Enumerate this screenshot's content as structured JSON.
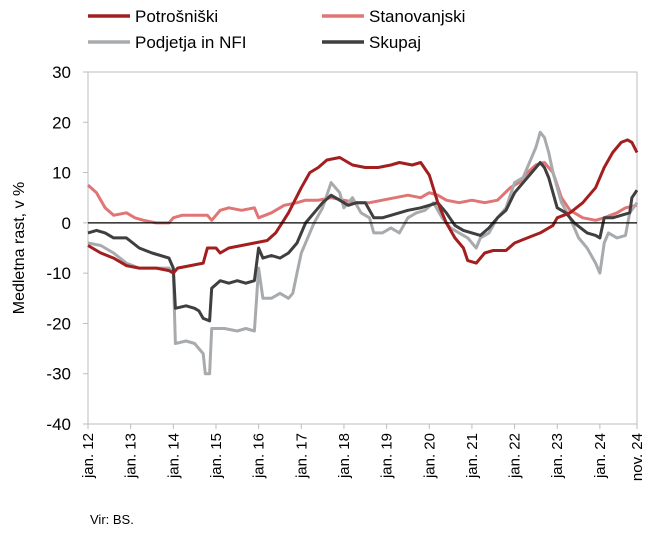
{
  "chart_data": {
    "type": "line",
    "ylabel": "Medletna rast, v %",
    "ylim": [
      -40,
      30
    ],
    "yticks": [
      "30",
      "20",
      "10",
      "0",
      "-10",
      "-20",
      "-30",
      "-40"
    ],
    "xticks": [
      "jan. 12",
      "jan. 13",
      "jan. 14",
      "jan. 15",
      "jan. 16",
      "jan. 17",
      "jan. 18",
      "jan. 19",
      "jan. 20",
      "jan. 21",
      "jan. 22",
      "jan. 23",
      "jan. 24",
      "nov. 24"
    ],
    "source": "Vir: BS.",
    "legend_position": "top",
    "series": [
      {
        "name": "Potrošniški",
        "color": "#A31F1F",
        "points": [
          [
            2012.0,
            -4.5
          ],
          [
            2012.3,
            -6
          ],
          [
            2012.6,
            -7
          ],
          [
            2012.9,
            -8.5
          ],
          [
            2013.2,
            -9
          ],
          [
            2013.6,
            -9
          ],
          [
            2013.9,
            -9.5
          ],
          [
            2014.0,
            -10
          ],
          [
            2014.1,
            -9
          ],
          [
            2014.4,
            -8.5
          ],
          [
            2014.7,
            -8
          ],
          [
            2014.8,
            -5
          ],
          [
            2015.0,
            -5
          ],
          [
            2015.1,
            -6
          ],
          [
            2015.3,
            -5
          ],
          [
            2015.6,
            -4.5
          ],
          [
            2015.9,
            -4
          ],
          [
            2016.2,
            -3.5
          ],
          [
            2016.4,
            -2
          ],
          [
            2016.7,
            2
          ],
          [
            2017.0,
            7
          ],
          [
            2017.2,
            10
          ],
          [
            2017.4,
            11
          ],
          [
            2017.6,
            12.5
          ],
          [
            2017.9,
            13
          ],
          [
            2018.2,
            11.5
          ],
          [
            2018.5,
            11
          ],
          [
            2018.8,
            11
          ],
          [
            2019.1,
            11.5
          ],
          [
            2019.3,
            12
          ],
          [
            2019.6,
            11.5
          ],
          [
            2019.8,
            12
          ],
          [
            2020.0,
            9.5
          ],
          [
            2020.2,
            4
          ],
          [
            2020.4,
            0
          ],
          [
            2020.6,
            -3
          ],
          [
            2020.8,
            -5
          ],
          [
            2020.9,
            -7.5
          ],
          [
            2021.1,
            -8
          ],
          [
            2021.3,
            -6
          ],
          [
            2021.5,
            -5.5
          ],
          [
            2021.8,
            -5.5
          ],
          [
            2022.0,
            -4
          ],
          [
            2022.3,
            -3
          ],
          [
            2022.6,
            -2
          ],
          [
            2022.9,
            -0.5
          ],
          [
            2023.0,
            1
          ],
          [
            2023.3,
            2
          ],
          [
            2023.6,
            4
          ],
          [
            2023.9,
            7
          ],
          [
            2024.1,
            11
          ],
          [
            2024.3,
            14
          ],
          [
            2024.5,
            16
          ],
          [
            2024.65,
            16.5
          ],
          [
            2024.75,
            16
          ],
          [
            2024.87,
            14
          ]
        ]
      },
      {
        "name": "Stanovanjski",
        "color": "#E07575",
        "points": [
          [
            2012.0,
            7.5
          ],
          [
            2012.2,
            6
          ],
          [
            2012.4,
            3
          ],
          [
            2012.6,
            1.5
          ],
          [
            2012.9,
            2
          ],
          [
            2013.1,
            1
          ],
          [
            2013.3,
            0.5
          ],
          [
            2013.6,
            0
          ],
          [
            2013.9,
            0
          ],
          [
            2014.0,
            1
          ],
          [
            2014.2,
            1.5
          ],
          [
            2014.6,
            1.5
          ],
          [
            2014.8,
            1.5
          ],
          [
            2014.9,
            0.5
          ],
          [
            2015.1,
            2.5
          ],
          [
            2015.3,
            3
          ],
          [
            2015.6,
            2.5
          ],
          [
            2015.9,
            3
          ],
          [
            2016.0,
            1
          ],
          [
            2016.3,
            2
          ],
          [
            2016.6,
            3.5
          ],
          [
            2016.9,
            4
          ],
          [
            2017.1,
            4.5
          ],
          [
            2017.4,
            4.5
          ],
          [
            2017.7,
            5
          ],
          [
            2018.0,
            4.5
          ],
          [
            2018.3,
            4
          ],
          [
            2018.6,
            4
          ],
          [
            2018.9,
            4.5
          ],
          [
            2019.2,
            5
          ],
          [
            2019.5,
            5.5
          ],
          [
            2019.8,
            5
          ],
          [
            2020.0,
            6
          ],
          [
            2020.2,
            5.5
          ],
          [
            2020.4,
            4.5
          ],
          [
            2020.7,
            4
          ],
          [
            2021.0,
            4.5
          ],
          [
            2021.3,
            4
          ],
          [
            2021.6,
            4.5
          ],
          [
            2021.9,
            7
          ],
          [
            2022.1,
            8
          ],
          [
            2022.3,
            10
          ],
          [
            2022.5,
            11.5
          ],
          [
            2022.7,
            12
          ],
          [
            2022.9,
            10
          ],
          [
            2023.1,
            5
          ],
          [
            2023.3,
            2.5
          ],
          [
            2023.6,
            1
          ],
          [
            2023.9,
            0.5
          ],
          [
            2024.1,
            1
          ],
          [
            2024.4,
            2
          ],
          [
            2024.6,
            3
          ],
          [
            2024.87,
            3.5
          ]
        ]
      },
      {
        "name": "Podjetja in NFI",
        "color": "#A8ABAE",
        "points": [
          [
            2012.0,
            -4
          ],
          [
            2012.3,
            -4.5
          ],
          [
            2012.6,
            -6
          ],
          [
            2012.9,
            -8
          ],
          [
            2013.2,
            -9
          ],
          [
            2013.6,
            -9
          ],
          [
            2013.9,
            -9
          ],
          [
            2014.0,
            -10
          ],
          [
            2014.05,
            -24
          ],
          [
            2014.3,
            -23.5
          ],
          [
            2014.5,
            -24
          ],
          [
            2014.6,
            -25
          ],
          [
            2014.7,
            -26
          ],
          [
            2014.75,
            -30
          ],
          [
            2014.85,
            -30
          ],
          [
            2014.9,
            -21
          ],
          [
            2015.2,
            -21
          ],
          [
            2015.5,
            -21.5
          ],
          [
            2015.7,
            -21
          ],
          [
            2015.9,
            -21.5
          ],
          [
            2016.0,
            -9
          ],
          [
            2016.1,
            -15
          ],
          [
            2016.3,
            -15
          ],
          [
            2016.5,
            -14
          ],
          [
            2016.7,
            -15
          ],
          [
            2016.8,
            -14
          ],
          [
            2016.9,
            -10
          ],
          [
            2017.0,
            -6
          ],
          [
            2017.2,
            -2
          ],
          [
            2017.3,
            0
          ],
          [
            2017.5,
            3
          ],
          [
            2017.7,
            8
          ],
          [
            2017.9,
            6
          ],
          [
            2018.0,
            3
          ],
          [
            2018.2,
            5
          ],
          [
            2018.4,
            2
          ],
          [
            2018.6,
            1
          ],
          [
            2018.7,
            -2
          ],
          [
            2018.9,
            -2
          ],
          [
            2019.1,
            -1
          ],
          [
            2019.3,
            -2
          ],
          [
            2019.5,
            1
          ],
          [
            2019.7,
            2
          ],
          [
            2019.9,
            2.5
          ],
          [
            2020.1,
            4
          ],
          [
            2020.3,
            1
          ],
          [
            2020.5,
            -1
          ],
          [
            2020.7,
            -2
          ],
          [
            2020.9,
            -3
          ],
          [
            2021.1,
            -5
          ],
          [
            2021.2,
            -3
          ],
          [
            2021.4,
            -2
          ],
          [
            2021.6,
            1
          ],
          [
            2021.8,
            3
          ],
          [
            2022.0,
            8
          ],
          [
            2022.2,
            9
          ],
          [
            2022.4,
            13
          ],
          [
            2022.5,
            15
          ],
          [
            2022.6,
            18
          ],
          [
            2022.7,
            17
          ],
          [
            2022.8,
            14
          ],
          [
            2022.9,
            10
          ],
          [
            2023.1,
            4
          ],
          [
            2023.3,
            1
          ],
          [
            2023.5,
            -3
          ],
          [
            2023.7,
            -5
          ],
          [
            2023.9,
            -8
          ],
          [
            2024.0,
            -10
          ],
          [
            2024.1,
            -4
          ],
          [
            2024.2,
            -2
          ],
          [
            2024.4,
            -3
          ],
          [
            2024.6,
            -2.5
          ],
          [
            2024.7,
            2
          ],
          [
            2024.87,
            4
          ]
        ]
      },
      {
        "name": "Skupaj",
        "color": "#3F3F3F",
        "points": [
          [
            2012.0,
            -2
          ],
          [
            2012.2,
            -1.5
          ],
          [
            2012.4,
            -2
          ],
          [
            2012.6,
            -3
          ],
          [
            2012.9,
            -3
          ],
          [
            2013.2,
            -5
          ],
          [
            2013.5,
            -6
          ],
          [
            2013.7,
            -6.5
          ],
          [
            2013.9,
            -7
          ],
          [
            2014.0,
            -9
          ],
          [
            2014.05,
            -17
          ],
          [
            2014.3,
            -16.5
          ],
          [
            2014.5,
            -17
          ],
          [
            2014.6,
            -17.5
          ],
          [
            2014.7,
            -19
          ],
          [
            2014.85,
            -19.5
          ],
          [
            2014.9,
            -13
          ],
          [
            2015.1,
            -11.5
          ],
          [
            2015.3,
            -12
          ],
          [
            2015.5,
            -11.5
          ],
          [
            2015.7,
            -12
          ],
          [
            2015.9,
            -11.5
          ],
          [
            2016.0,
            -5
          ],
          [
            2016.1,
            -7
          ],
          [
            2016.3,
            -6.5
          ],
          [
            2016.5,
            -7
          ],
          [
            2016.7,
            -6
          ],
          [
            2016.9,
            -4
          ],
          [
            2017.1,
            0
          ],
          [
            2017.3,
            2
          ],
          [
            2017.5,
            4
          ],
          [
            2017.7,
            5.5
          ],
          [
            2017.9,
            4.5
          ],
          [
            2018.1,
            3.5
          ],
          [
            2018.3,
            4
          ],
          [
            2018.5,
            4
          ],
          [
            2018.7,
            1
          ],
          [
            2018.9,
            1
          ],
          [
            2019.1,
            1.5
          ],
          [
            2019.3,
            2
          ],
          [
            2019.5,
            2.5
          ],
          [
            2019.8,
            3
          ],
          [
            2020.0,
            3.5
          ],
          [
            2020.2,
            4
          ],
          [
            2020.4,
            2
          ],
          [
            2020.6,
            -0.5
          ],
          [
            2020.8,
            -1.5
          ],
          [
            2021.0,
            -2
          ],
          [
            2021.2,
            -2.5
          ],
          [
            2021.4,
            -1
          ],
          [
            2021.6,
            1
          ],
          [
            2021.8,
            2.5
          ],
          [
            2022.0,
            6
          ],
          [
            2022.2,
            8
          ],
          [
            2022.4,
            10
          ],
          [
            2022.6,
            12
          ],
          [
            2022.7,
            11
          ],
          [
            2022.8,
            9
          ],
          [
            2023.0,
            3
          ],
          [
            2023.2,
            2
          ],
          [
            2023.4,
            0
          ],
          [
            2023.7,
            -2
          ],
          [
            2023.9,
            -2.5
          ],
          [
            2024.0,
            -3
          ],
          [
            2024.1,
            1
          ],
          [
            2024.3,
            1
          ],
          [
            2024.5,
            1.5
          ],
          [
            2024.7,
            2
          ],
          [
            2024.75,
            5
          ],
          [
            2024.87,
            6.5
          ]
        ]
      }
    ]
  }
}
